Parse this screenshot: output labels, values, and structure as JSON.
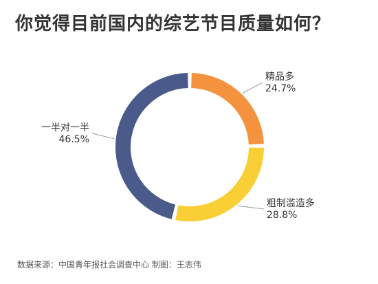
{
  "chart_data": {
    "type": "pie",
    "title": "你觉得目前国内的综艺节目质量如何？",
    "slices": [
      {
        "label": "精品多",
        "value": 24.7,
        "display": "24.7%",
        "color": "#F5923E"
      },
      {
        "label": "粗制滥造多",
        "value": 28.8,
        "display": "28.8%",
        "color": "#F9CF36"
      },
      {
        "label": "一半对一半",
        "value": 46.5,
        "display": "46.5%",
        "color": "#4A5A8A"
      }
    ],
    "source": "数据来源：中国青年报社会调查中心 制图：王志伟"
  }
}
